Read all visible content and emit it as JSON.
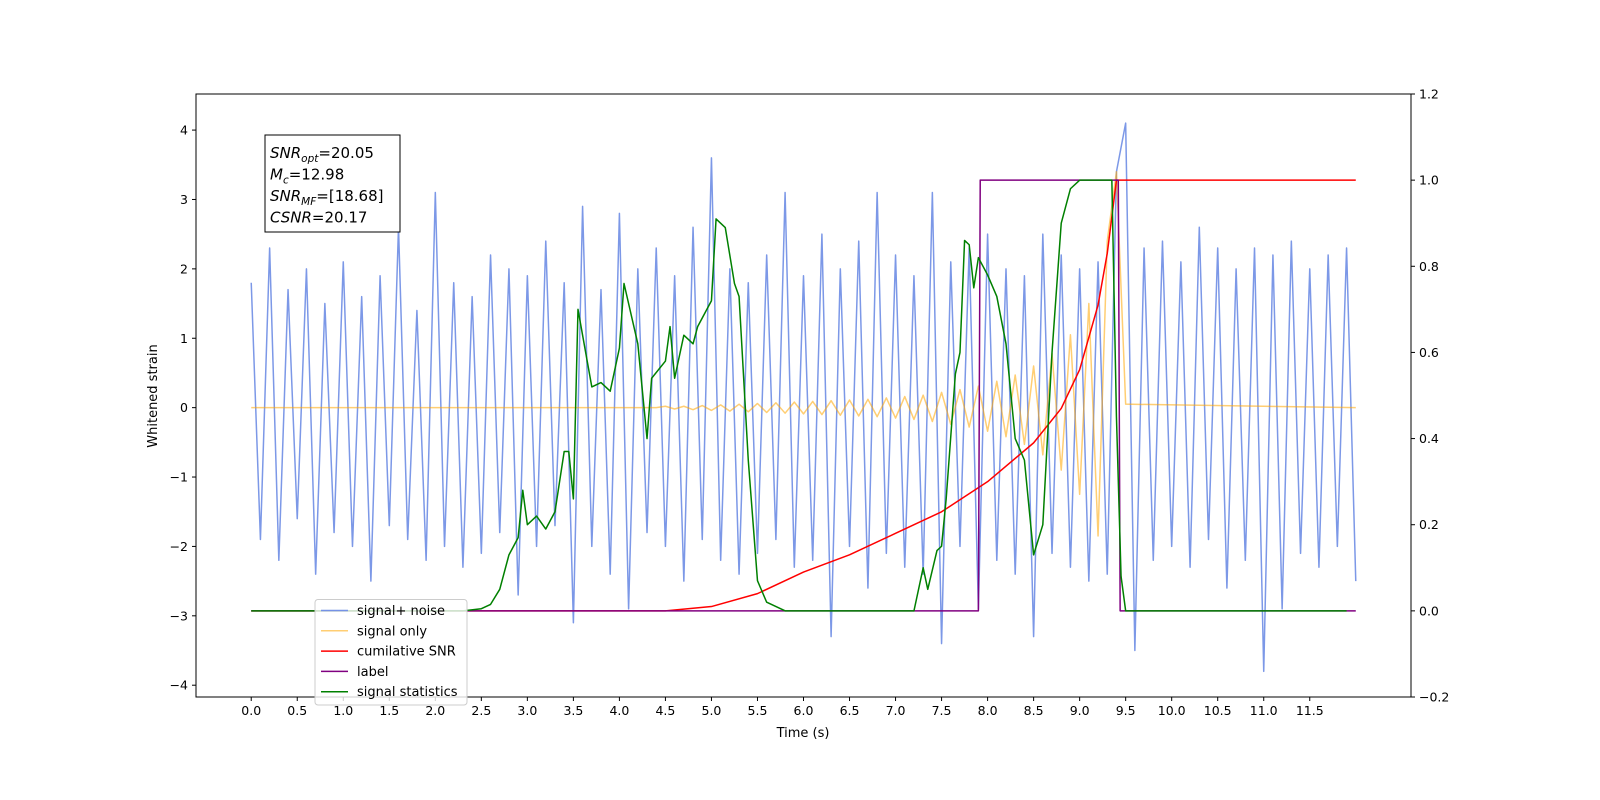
{
  "chart_data": {
    "type": "line",
    "xlabel": "Time (s)",
    "ylabel": "Whitened strain",
    "xlim": [
      -0.6,
      12.6
    ],
    "ylim": [
      -4.17,
      4.52
    ],
    "y2lim": [
      -0.2,
      1.2
    ],
    "xticks": [
      {
        "value": 0,
        "label": "0.0"
      },
      0.5,
      {
        "value": 1,
        "label": "1.0"
      },
      1.5,
      {
        "value": 2,
        "label": "2.0"
      },
      2.5,
      {
        "value": 3,
        "label": "3.0"
      },
      3.5,
      {
        "value": 4,
        "label": "4.0"
      },
      4.5,
      {
        "value": 5,
        "label": "5.0"
      },
      5.5,
      {
        "value": 6,
        "label": "6.0"
      },
      6.5,
      {
        "value": 7,
        "label": "7.0"
      },
      7.5,
      {
        "value": 8,
        "label": "8.0"
      },
      8.5,
      {
        "value": 9,
        "label": "9.0"
      },
      9.5,
      {
        "value": 10,
        "label": "10.0"
      },
      10.5,
      {
        "value": 11,
        "label": "11.0"
      },
      11.5
    ],
    "yticks": [
      {
        "value": -4,
        "label": "−4"
      },
      {
        "value": -3,
        "label": "−3"
      },
      {
        "value": -2,
        "label": "−2"
      },
      {
        "value": -1,
        "label": "−1"
      },
      0,
      1,
      2,
      3,
      4
    ],
    "y2ticks": [
      {
        "value": -0.2,
        "label": "−0.2"
      },
      {
        "value": 0,
        "label": "0.0"
      },
      0.2,
      0.4,
      0.6,
      0.8,
      {
        "value": 1,
        "label": "1.0"
      },
      1.2
    ],
    "annotation": [
      {
        "symbol": "SNR",
        "sub": "opt",
        "text": "=20.05"
      },
      {
        "symbol": "M",
        "sub": "c",
        "text": "=12.98"
      },
      {
        "symbol": "SNR",
        "sub": "MF",
        "text": "=[18.68]"
      },
      {
        "symbol": "CSNR",
        "sub": null,
        "text": "=20.17"
      }
    ],
    "legend": "lower left",
    "series": [
      {
        "name": "signal+ noise",
        "color": "#7592e6",
        "axis": "y",
        "x": [
          0,
          0.1,
          0.2,
          0.3,
          0.4,
          0.5,
          0.6,
          0.7,
          0.8,
          0.9,
          1,
          1.1,
          1.2,
          1.3,
          1.4,
          1.5,
          1.6,
          1.7,
          1.8,
          1.9,
          2,
          2.1,
          2.2,
          2.3,
          2.4,
          2.5,
          2.6,
          2.7,
          2.8,
          2.9,
          3,
          3.1,
          3.2,
          3.3,
          3.4,
          3.5,
          3.6,
          3.7,
          3.8,
          3.9,
          4,
          4.1,
          4.2,
          4.3,
          4.4,
          4.5,
          4.6,
          4.7,
          4.8,
          4.9,
          5,
          5.1,
          5.2,
          5.3,
          5.4,
          5.5,
          5.6,
          5.7,
          5.8,
          5.9,
          6,
          6.1,
          6.2,
          6.3,
          6.4,
          6.5,
          6.6,
          6.7,
          6.8,
          6.9,
          7,
          7.1,
          7.2,
          7.3,
          7.4,
          7.5,
          7.6,
          7.7,
          7.8,
          7.9,
          8,
          8.1,
          8.2,
          8.3,
          8.4,
          8.5,
          8.6,
          8.7,
          8.8,
          8.9,
          9,
          9.1,
          9.2,
          9.3,
          9.4,
          9.5,
          9.6,
          9.7,
          9.8,
          9.9,
          10,
          10.1,
          10.2,
          10.3,
          10.4,
          10.5,
          10.6,
          10.7,
          10.8,
          10.9,
          11,
          11.1,
          11.2,
          11.3,
          11.4,
          11.5,
          11.6,
          11.7,
          11.8,
          11.9,
          12
        ],
        "values": [
          1.8,
          -1.9,
          2.3,
          -2.2,
          1.7,
          -1.6,
          2.0,
          -2.4,
          1.5,
          -1.8,
          2.1,
          -2.0,
          1.6,
          -2.5,
          1.9,
          -1.7,
          2.6,
          -1.9,
          1.4,
          -2.2,
          3.1,
          -2.0,
          1.8,
          -2.3,
          1.6,
          -2.1,
          2.2,
          -1.8,
          2.0,
          -2.7,
          1.9,
          -2.0,
          2.4,
          -1.7,
          1.8,
          -3.1,
          2.9,
          -2.0,
          1.7,
          -2.4,
          2.8,
          -2.9,
          2.0,
          -1.8,
          2.3,
          -2.0,
          1.9,
          -2.5,
          2.6,
          -1.9,
          3.6,
          -2.2,
          2.0,
          -2.4,
          1.8,
          -2.1,
          2.2,
          -1.9,
          3.1,
          -2.3,
          1.9,
          -2.2,
          2.5,
          -3.3,
          2.0,
          -2.0,
          2.4,
          -2.6,
          3.1,
          -2.1,
          2.2,
          -2.3,
          1.9,
          -2.4,
          3.1,
          -3.4,
          2.1,
          -2.0,
          2.3,
          -2.9,
          2.5,
          -2.2,
          2.0,
          -2.4,
          1.9,
          -3.3,
          2.5,
          -2.1,
          2.2,
          -2.3,
          2.0,
          -2.5,
          2.1,
          -2.4,
          3.4,
          4.1,
          -3.5,
          2.3,
          -2.2,
          2.4,
          -2.0,
          2.1,
          -2.3,
          2.6,
          -1.9,
          2.3,
          -2.6,
          2.0,
          -2.2,
          2.3,
          -3.8,
          2.2,
          -2.9,
          2.4,
          -2.1,
          2.0,
          -2.3,
          2.2,
          -2.0,
          2.3,
          -2.5
        ]
      },
      {
        "name": "signal only",
        "color": "#ffa500",
        "axis": "y",
        "x": [
          0,
          4.4,
          4.5,
          4.6,
          4.7,
          4.8,
          4.9,
          5,
          5.1,
          5.2,
          5.3,
          5.4,
          5.5,
          5.6,
          5.7,
          5.8,
          5.9,
          6,
          6.1,
          6.2,
          6.3,
          6.4,
          6.5,
          6.6,
          6.7,
          6.8,
          6.9,
          7,
          7.1,
          7.2,
          7.3,
          7.4,
          7.5,
          7.6,
          7.7,
          7.8,
          7.9,
          8,
          8.1,
          8.2,
          8.3,
          8.4,
          8.5,
          8.6,
          8.7,
          8.8,
          8.9,
          9,
          9.1,
          9.2,
          9.3,
          9.4,
          9.5,
          12
        ],
        "values": [
          0,
          0,
          0.02,
          -0.02,
          0.02,
          -0.03,
          0.03,
          -0.04,
          0.04,
          -0.05,
          0.05,
          -0.06,
          0.06,
          -0.07,
          0.07,
          -0.08,
          0.08,
          -0.09,
          0.09,
          -0.1,
          0.1,
          -0.11,
          0.11,
          -0.12,
          0.12,
          -0.13,
          0.14,
          -0.15,
          0.16,
          -0.17,
          0.18,
          -0.2,
          0.22,
          -0.24,
          0.26,
          -0.28,
          0.31,
          -0.34,
          0.38,
          -0.42,
          0.47,
          -0.53,
          0.6,
          -0.68,
          0.78,
          -0.9,
          1.05,
          -1.25,
          1.5,
          -1.85,
          2.4,
          3.4,
          0.05,
          0
        ]
      },
      {
        "name": "cumilative SNR",
        "color": "#ff0000",
        "axis": "y2",
        "x": [
          0,
          4.5,
          5,
          5.5,
          6,
          6.5,
          7,
          7.5,
          8,
          8.5,
          8.8,
          9,
          9.2,
          9.3,
          9.4,
          9.41,
          12
        ],
        "values": [
          0,
          0,
          0.01,
          0.04,
          0.09,
          0.13,
          0.18,
          0.23,
          0.3,
          0.39,
          0.47,
          0.56,
          0.71,
          0.83,
          1,
          1,
          1
        ]
      },
      {
        "name": "label",
        "color": "#800080",
        "axis": "y2",
        "x": [
          0,
          7.9,
          7.92,
          9.42,
          9.44,
          12
        ],
        "values": [
          0,
          0,
          1,
          1,
          0,
          0
        ]
      },
      {
        "name": "signal statistics",
        "color": "#008000",
        "axis": "y2",
        "x": [
          0,
          2.3,
          2.5,
          2.6,
          2.7,
          2.8,
          2.9,
          2.95,
          3,
          3.1,
          3.2,
          3.3,
          3.4,
          3.45,
          3.5,
          3.55,
          3.7,
          3.8,
          3.9,
          4,
          4.05,
          4.2,
          4.3,
          4.35,
          4.5,
          4.55,
          4.6,
          4.7,
          4.8,
          4.85,
          5,
          5.05,
          5.15,
          5.25,
          5.3,
          5.4,
          5.5,
          5.6,
          5.8,
          7.2,
          7.3,
          7.35,
          7.45,
          7.5,
          7.55,
          7.65,
          7.7,
          7.75,
          7.8,
          7.85,
          7.9,
          8,
          8.1,
          8.2,
          8.3,
          8.4,
          8.5,
          8.6,
          8.7,
          8.8,
          8.9,
          9,
          9.35,
          9.4,
          9.45,
          9.5,
          11.9
        ],
        "values": [
          0,
          0,
          0.005,
          0.015,
          0.05,
          0.13,
          0.17,
          0.28,
          0.2,
          0.22,
          0.19,
          0.23,
          0.37,
          0.37,
          0.26,
          0.7,
          0.52,
          0.53,
          0.51,
          0.61,
          0.76,
          0.62,
          0.4,
          0.54,
          0.58,
          0.66,
          0.54,
          0.64,
          0.62,
          0.66,
          0.72,
          0.91,
          0.89,
          0.76,
          0.73,
          0.35,
          0.07,
          0.02,
          0,
          0,
          0.1,
          0.05,
          0.14,
          0.15,
          0.26,
          0.55,
          0.6,
          0.86,
          0.85,
          0.75,
          0.82,
          0.78,
          0.73,
          0.62,
          0.4,
          0.35,
          0.13,
          0.2,
          0.6,
          0.9,
          0.98,
          1,
          1,
          0.45,
          0.08,
          0,
          0
        ]
      }
    ]
  }
}
